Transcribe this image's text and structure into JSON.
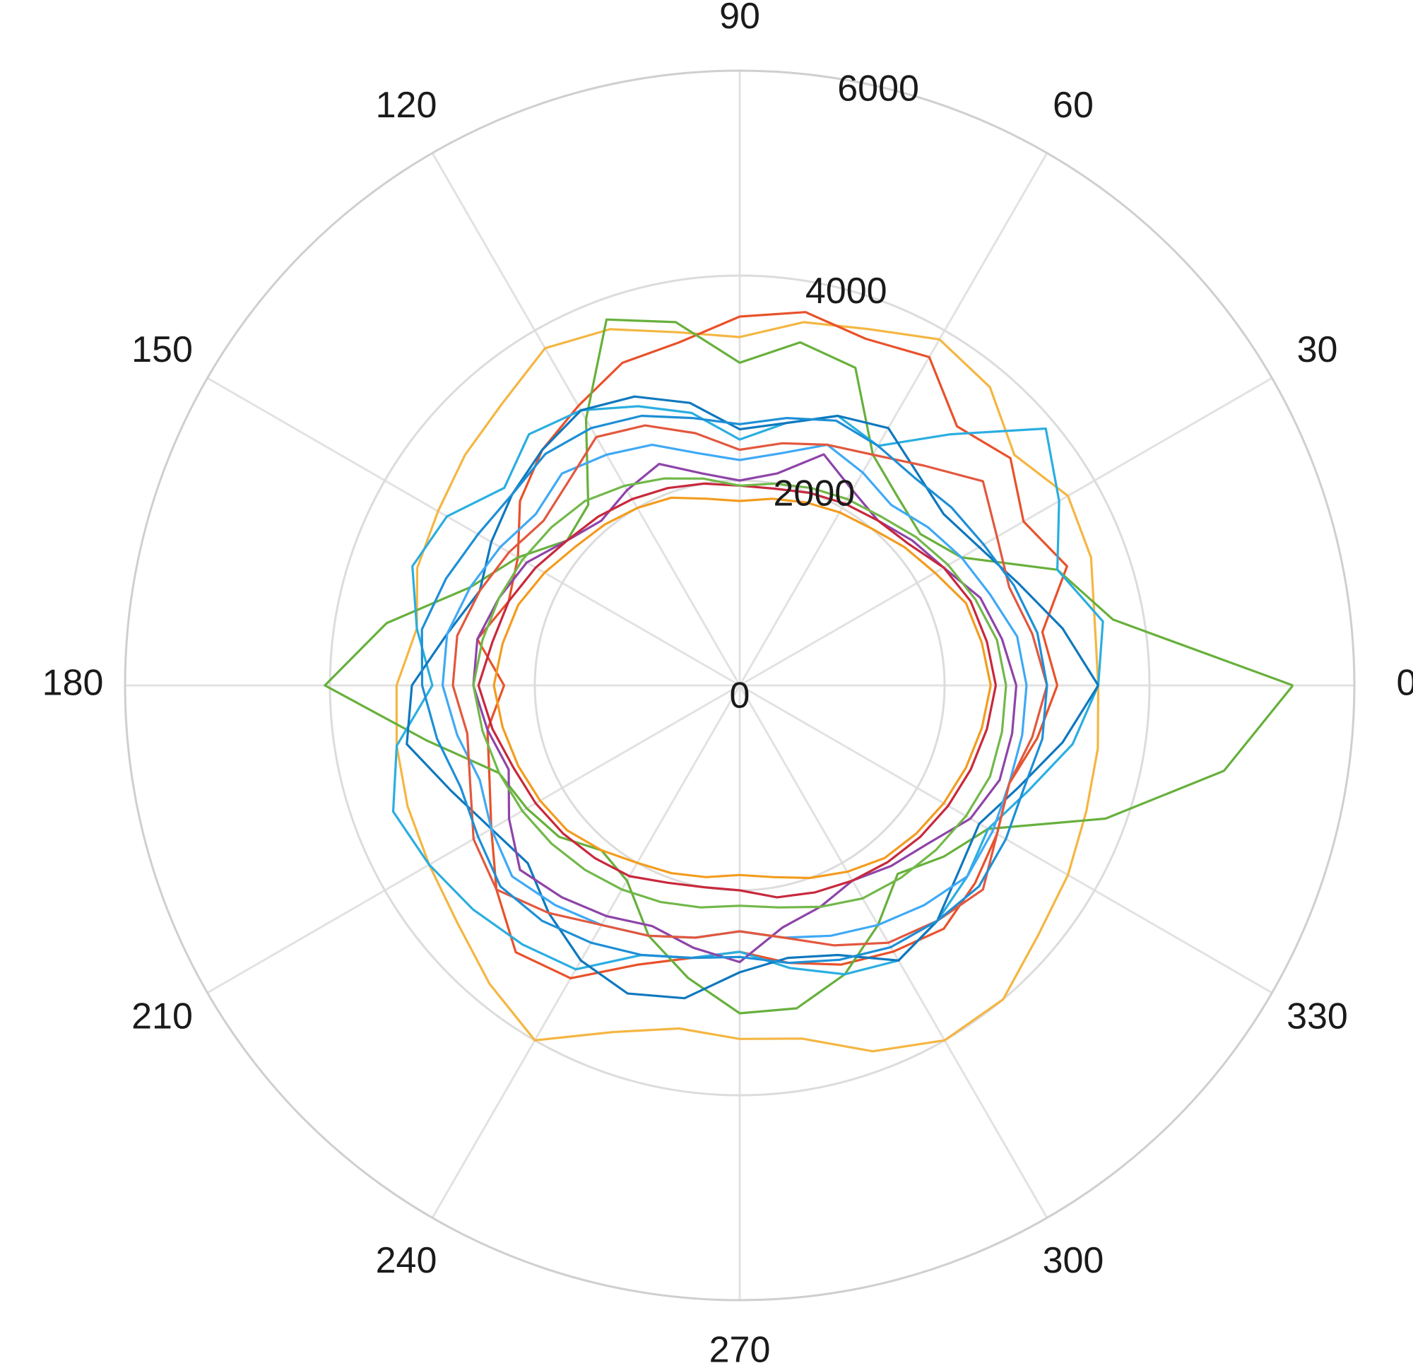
{
  "chart_data": {
    "type": "polar-line",
    "title": "",
    "angle_unit": "degrees",
    "angle_ticks": [
      0,
      30,
      60,
      90,
      120,
      150,
      180,
      210,
      240,
      270,
      300,
      330
    ],
    "r_ticks": [
      0,
      2000,
      4000,
      6000
    ],
    "rlim": [
      0,
      6000
    ],
    "grid": true,
    "legend": "none",
    "theta": [
      0,
      10,
      20,
      30,
      40,
      50,
      60,
      70,
      80,
      90,
      100,
      110,
      120,
      130,
      140,
      150,
      160,
      170,
      180,
      190,
      200,
      210,
      220,
      230,
      240,
      250,
      260,
      270,
      280,
      290,
      300,
      310,
      320,
      330,
      340,
      350
    ],
    "series": [
      {
        "color": "#F4B642",
        "r": [
          3500,
          3520,
          3650,
          3700,
          3500,
          3800,
          3900,
          3700,
          3600,
          3400,
          3500,
          3700,
          3800,
          3600,
          3500,
          3400,
          3350,
          3200,
          3350,
          3400,
          3450,
          3500,
          3600,
          3800,
          4000,
          3600,
          3400,
          3450,
          3500,
          3800,
          4000,
          4000,
          3800,
          3700,
          3600,
          3550
        ]
      },
      {
        "color": "#E8512A",
        "r": [
          3100,
          3000,
          3400,
          3200,
          3450,
          3300,
          3700,
          3600,
          3700,
          3600,
          3400,
          3350,
          3150,
          3000,
          2800,
          2500,
          2400,
          2600,
          2300,
          2500,
          2600,
          2800,
          3100,
          3400,
          3300,
          2900,
          2700,
          2600,
          2750,
          2900,
          3000,
          3100,
          3000,
          2900,
          2800,
          2950
        ]
      },
      {
        "color": "#67B03C",
        "r": [
          5400,
          3700,
          3300,
          2500,
          2300,
          2400,
          2600,
          3300,
          3400,
          3150,
          3600,
          3800,
          3000,
          2300,
          2200,
          2500,
          2800,
          3500,
          4050,
          3100,
          2500,
          2400,
          2300,
          2100,
          2200,
          2600,
          2900,
          3200,
          3200,
          3000,
          2700,
          2400,
          2600,
          2800,
          3800,
          4800
        ]
      },
      {
        "color": "#2AAEE0",
        "r": [
          3500,
          3600,
          3300,
          3600,
          3900,
          3200,
          2700,
          2800,
          2600,
          2400,
          2700,
          2900,
          3100,
          3200,
          3000,
          3300,
          3400,
          3200,
          3000,
          3400,
          3600,
          3500,
          3400,
          3300,
          3200,
          2800,
          2700,
          2600,
          2800,
          3000,
          3100,
          3000,
          2900,
          2800,
          3000,
          3300
        ]
      },
      {
        "color": "#0F78BE",
        "r": [
          3500,
          3200,
          2900,
          2700,
          2600,
          2700,
          2900,
          2800,
          2600,
          2500,
          2800,
          3000,
          3100,
          3000,
          2900,
          2800,
          2700,
          2900,
          3200,
          3300,
          3000,
          2800,
          2700,
          2900,
          3100,
          3200,
          3100,
          2800,
          2700,
          2800,
          3100,
          3000,
          2800,
          2700,
          2900,
          3200
        ]
      },
      {
        "color": "#8E44A8",
        "r": [
          2700,
          2600,
          2500,
          2300,
          2200,
          2100,
          2200,
          2400,
          2100,
          2000,
          2100,
          2300,
          2200,
          2100,
          2200,
          2400,
          2500,
          2600,
          2600,
          2500,
          2400,
          2600,
          2800,
          2700,
          2600,
          2500,
          2600,
          2700,
          2400,
          2300,
          2200,
          2300,
          2400,
          2600,
          2700,
          2700
        ]
      },
      {
        "color": "#C8283C",
        "r": [
          2500,
          2450,
          2400,
          2300,
          2150,
          2100,
          2050,
          2000,
          1950,
          1950,
          2000,
          2050,
          2100,
          2150,
          2200,
          2300,
          2400,
          2450,
          2550,
          2450,
          2350,
          2300,
          2250,
          2200,
          2150,
          2050,
          2000,
          2000,
          2100,
          2150,
          2200,
          2250,
          2300,
          2350,
          2400,
          2450
        ]
      },
      {
        "color": "#F39C1E",
        "r": [
          2450,
          2400,
          2350,
          2200,
          2100,
          2000,
          1950,
          1900,
          1850,
          1800,
          1850,
          1950,
          2000,
          2050,
          2100,
          2200,
          2300,
          2350,
          2400,
          2350,
          2300,
          2250,
          2200,
          2100,
          2000,
          1950,
          1900,
          1850,
          1900,
          2000,
          2100,
          2200,
          2250,
          2300,
          2350,
          2400
        ]
      },
      {
        "color": "#3FA9F5",
        "r": [
          2800,
          2750,
          2600,
          2500,
          2400,
          2300,
          2400,
          2500,
          2300,
          2200,
          2300,
          2500,
          2600,
          2700,
          2600,
          2700,
          2800,
          2900,
          2900,
          2800,
          2700,
          2800,
          2900,
          2800,
          2700,
          2600,
          2500,
          2400,
          2500,
          2600,
          2700,
          2800,
          2900,
          2850,
          2800,
          2800
        ]
      },
      {
        "color": "#E2583E",
        "r": [
          3000,
          2900,
          2800,
          2900,
          3100,
          2800,
          2600,
          2500,
          2400,
          2300,
          2500,
          2700,
          2800,
          2600,
          2500,
          2600,
          2700,
          2800,
          2800,
          2700,
          2800,
          3000,
          3100,
          2900,
          2700,
          2600,
          2500,
          2400,
          2500,
          2700,
          2900,
          3000,
          3100,
          2900,
          2800,
          2900
        ]
      },
      {
        "color": "#72B84A",
        "r": [
          2600,
          2550,
          2450,
          2350,
          2250,
          2150,
          2100,
          2050,
          2000,
          1950,
          2050,
          2150,
          2250,
          2350,
          2400,
          2450,
          2500,
          2550,
          2600,
          2550,
          2500,
          2450,
          2400,
          2350,
          2300,
          2250,
          2200,
          2150,
          2200,
          2300,
          2400,
          2450,
          2500,
          2550,
          2600,
          2600
        ]
      },
      {
        "color": "#1D8FD6",
        "r": [
          3000,
          2950,
          2850,
          2750,
          2700,
          2650,
          2700,
          2750,
          2650,
          2550,
          2650,
          2800,
          2900,
          2950,
          2900,
          2950,
          3050,
          3150,
          3100,
          3000,
          2900,
          2950,
          3050,
          3000,
          2900,
          2800,
          2700,
          2650,
          2750,
          2850,
          2950,
          3000,
          3050,
          3000,
          2950,
          3000
        ]
      }
    ]
  }
}
